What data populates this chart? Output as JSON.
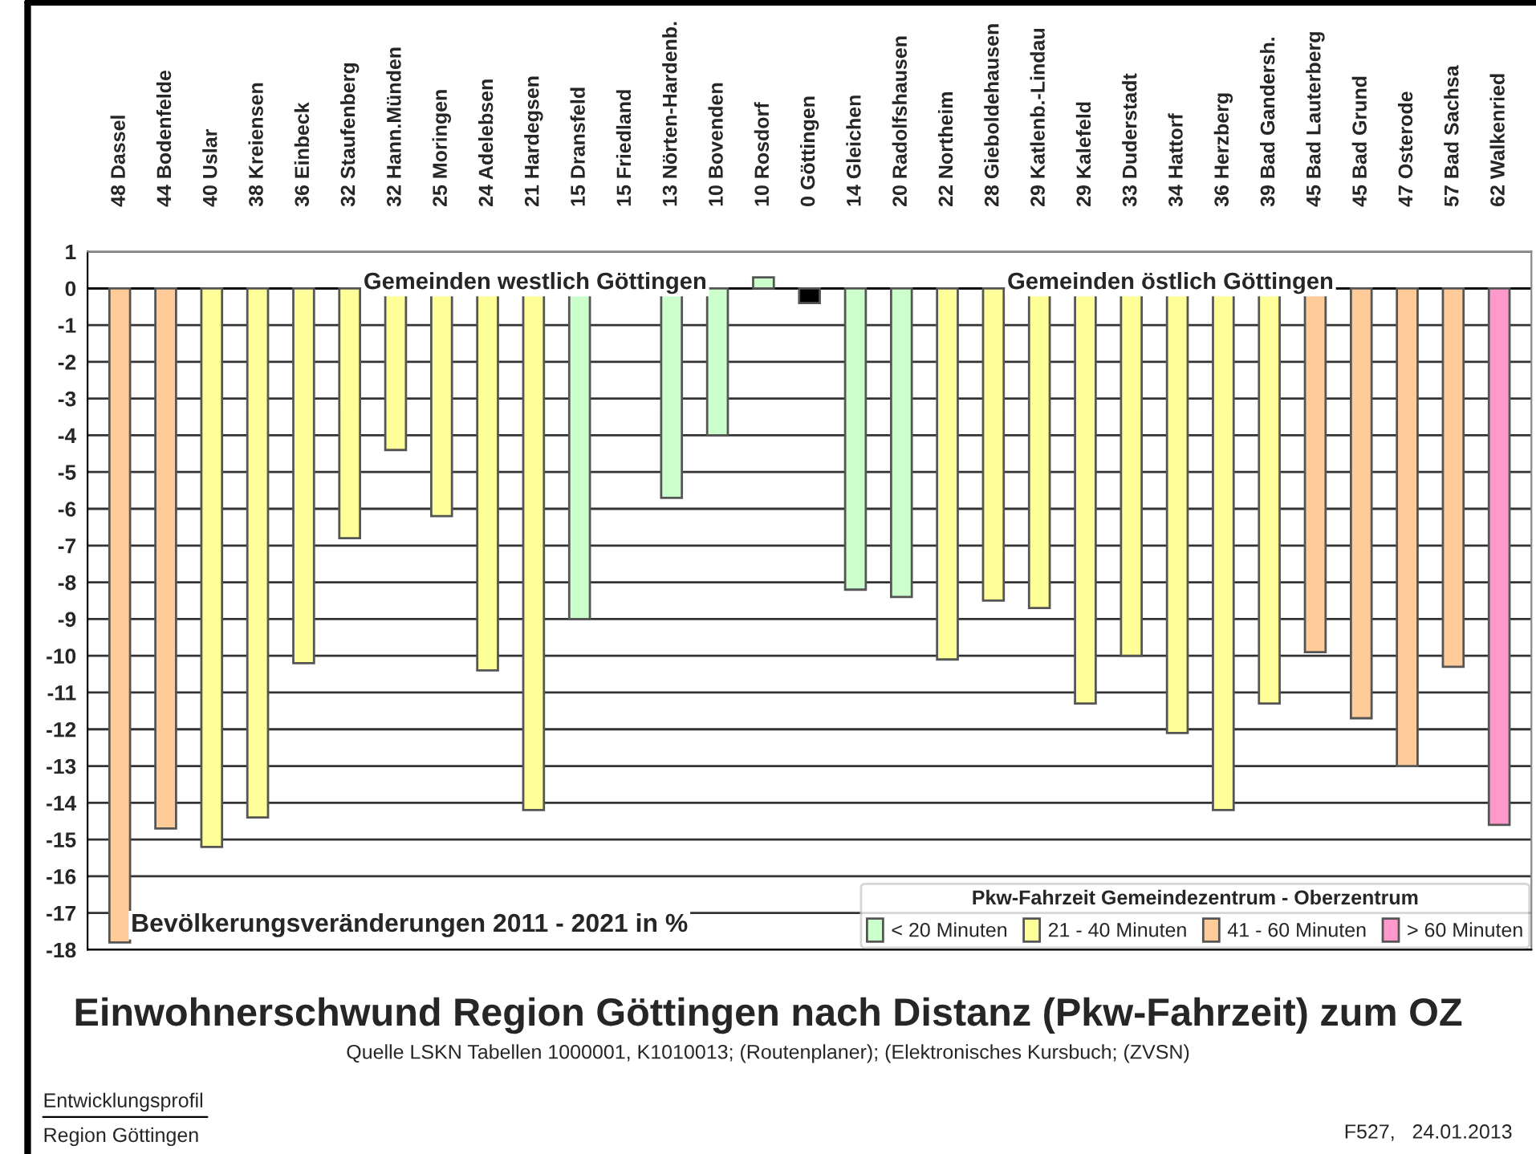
{
  "chart_data": {
    "type": "bar",
    "title": "Einwohnerschwund Region Göttingen nach Distanz (Pkw-Fahrzeit) zum OZ",
    "categories": [
      "48 Dassel",
      "44 Bodenfelde",
      "40 Uslar",
      "38 Kreiensen",
      "36 Einbeck",
      "32 Staufenberg",
      "32 Hann.Münden",
      "25 Moringen",
      "24 Adelebsen",
      "21 Hardegsen",
      "15 Dransfeld",
      "15 Friedland",
      "13 Nörten-Hardenb.",
      "10 Bovenden",
      "10 Rosdorf",
      "0 Göttingen",
      "14 Gleichen",
      "20 Radolfshausen",
      "22 Northeim",
      "28 Gieboldehausen",
      "29 Katlenb.-Lindau",
      "29 Kalefeld",
      "33 Duderstadt",
      "34 Hattorf",
      "36 Herzberg",
      "39 Bad Gandersh.",
      "45 Bad Lauterberg",
      "45 Bad Grund",
      "47 Osterode",
      "57 Bad Sachsa",
      "62 Walkenried"
    ],
    "series": [
      {
        "name": "< 20 Minuten",
        "color": "#ccffcc",
        "values": [
          null,
          null,
          null,
          null,
          null,
          null,
          null,
          null,
          null,
          null,
          -9.0,
          null,
          -5.7,
          -4.0,
          0.3,
          null,
          -8.2,
          -8.4,
          null,
          null,
          null,
          null,
          null,
          null,
          null,
          null,
          null,
          null,
          null,
          null,
          null
        ]
      },
      {
        "name": "21 - 40 Minuten",
        "color": "#ffff99",
        "values": [
          null,
          null,
          -15.2,
          -14.4,
          -10.2,
          -6.8,
          -4.4,
          -6.2,
          -10.4,
          -14.2,
          null,
          null,
          null,
          null,
          null,
          null,
          null,
          null,
          -10.1,
          -8.5,
          -8.7,
          -11.3,
          -10.0,
          -12.1,
          -14.2,
          -11.3,
          null,
          null,
          null,
          null,
          null
        ]
      },
      {
        "name": "41 - 60 Minuten",
        "color": "#ffcc99",
        "values": [
          -17.8,
          -14.7,
          null,
          null,
          null,
          null,
          null,
          null,
          null,
          null,
          null,
          null,
          null,
          null,
          null,
          null,
          null,
          null,
          null,
          null,
          null,
          null,
          null,
          null,
          null,
          null,
          -9.9,
          -11.7,
          -13.0,
          -10.3,
          null
        ]
      },
      {
        "name": "> 60 Minuten",
        "color": "#ff99cc",
        "values": [
          null,
          null,
          null,
          null,
          null,
          null,
          null,
          null,
          null,
          null,
          null,
          null,
          null,
          null,
          null,
          null,
          null,
          null,
          null,
          null,
          null,
          null,
          null,
          null,
          null,
          null,
          null,
          null,
          null,
          null,
          -14.6
        ]
      },
      {
        "color": "#000000",
        "values": [
          null,
          null,
          null,
          null,
          null,
          null,
          null,
          null,
          null,
          null,
          null,
          null,
          null,
          null,
          null,
          -0.4,
          null,
          null,
          null,
          null,
          null,
          null,
          null,
          null,
          null,
          null,
          null,
          null,
          null,
          null,
          null
        ]
      }
    ],
    "ylim": [
      -18,
      1
    ],
    "yticks": [
      -18,
      -17,
      -16,
      -15,
      -14,
      -13,
      -12,
      -11,
      -10,
      -9,
      -8,
      -7,
      -6,
      -5,
      -4,
      -3,
      -2,
      -1,
      0,
      1
    ],
    "grid": "y",
    "legend": "bottom right",
    "legend_title": "Pkw-Fahrzeit Gemeindezentrum - Oberzentrum",
    "annotations": [
      "Gemeinden westlich Göttingen",
      "Gemeinden östlich Göttingen",
      "Bevölkerungsveränderungen 2011 - 2021 in %",
      "Quelle LSKN Tabellen 1000001, K1010013; (Routenplaner); (Elektronisches Kursbuch; (ZVSN)",
      "Entwicklungsprofil",
      "Region Göttingen",
      "F527,   24.01.2013"
    ]
  }
}
